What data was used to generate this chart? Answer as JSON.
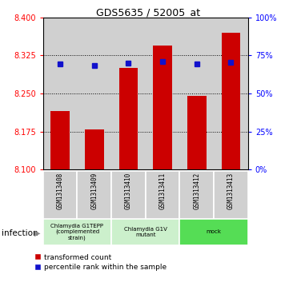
{
  "title": "GDS5635 / 52005_at",
  "samples": [
    "GSM1313408",
    "GSM1313409",
    "GSM1313410",
    "GSM1313411",
    "GSM1313412",
    "GSM1313413"
  ],
  "red_values": [
    8.215,
    8.18,
    8.3,
    8.345,
    8.245,
    8.37
  ],
  "blue_values": [
    8.308,
    8.305,
    8.31,
    8.313,
    8.308,
    8.312
  ],
  "y_min": 8.1,
  "y_max": 8.4,
  "y_ticks": [
    8.1,
    8.175,
    8.25,
    8.325,
    8.4
  ],
  "right_y_ticks": [
    0,
    25,
    50,
    75,
    100
  ],
  "right_y_labels": [
    "0%",
    "25%",
    "50%",
    "75%",
    "100%"
  ],
  "groups": [
    {
      "label": "Chlamydia G1TEPP\n(complemented\nstrain)",
      "start": 0,
      "end": 2,
      "color": "#ccf0cc"
    },
    {
      "label": "Chlamydia G1V\nmutant",
      "start": 2,
      "end": 4,
      "color": "#ccf0cc"
    },
    {
      "label": "mock",
      "start": 4,
      "end": 6,
      "color": "#55dd55"
    }
  ],
  "bar_color": "#cc0000",
  "dot_color": "#1111cc",
  "bar_width": 0.55,
  "infection_label": "infection",
  "legend_red": "transformed count",
  "legend_blue": "percentile rank within the sample",
  "bg_color": "#d0d0d0",
  "plot_bg": "#ffffff"
}
